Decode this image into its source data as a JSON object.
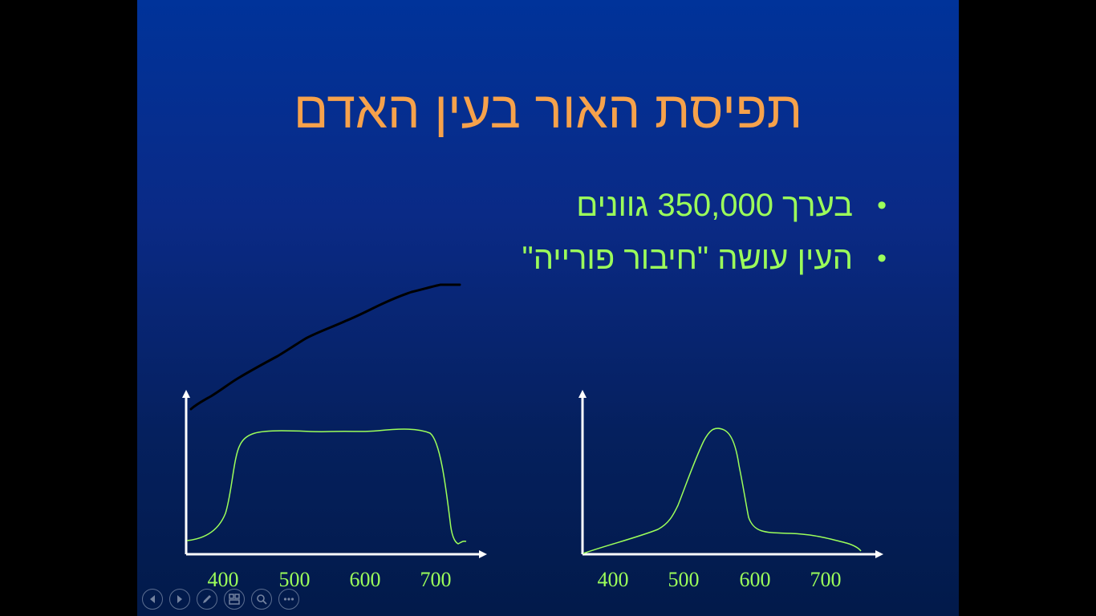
{
  "slide": {
    "title": "תפיסת האור בעין האדם",
    "bullets": [
      "בערך 350,000 גוונים",
      "העין עושה \"חיבור פורייה\""
    ],
    "bullet_symbol": "•"
  },
  "charts": {
    "left": {
      "ticks": [
        "400",
        "500",
        "600",
        "700"
      ]
    },
    "right": {
      "ticks": [
        "400",
        "500",
        "600",
        "700"
      ]
    }
  },
  "colors": {
    "title": "#f7a24b",
    "text": "#9cff5a",
    "curve": "#9cff5a",
    "axis": "#ffffff",
    "ink": "#000000"
  },
  "toolbar": [
    {
      "name": "previous-slide-button",
      "icon": "arrow-left-icon"
    },
    {
      "name": "next-slide-button",
      "icon": "arrow-right-icon"
    },
    {
      "name": "pen-tool-button",
      "icon": "pen-icon"
    },
    {
      "name": "see-all-slides-button",
      "icon": "slides-grid-icon"
    },
    {
      "name": "zoom-button",
      "icon": "magnifier-icon"
    },
    {
      "name": "more-options-button",
      "icon": "ellipsis-icon"
    }
  ]
}
